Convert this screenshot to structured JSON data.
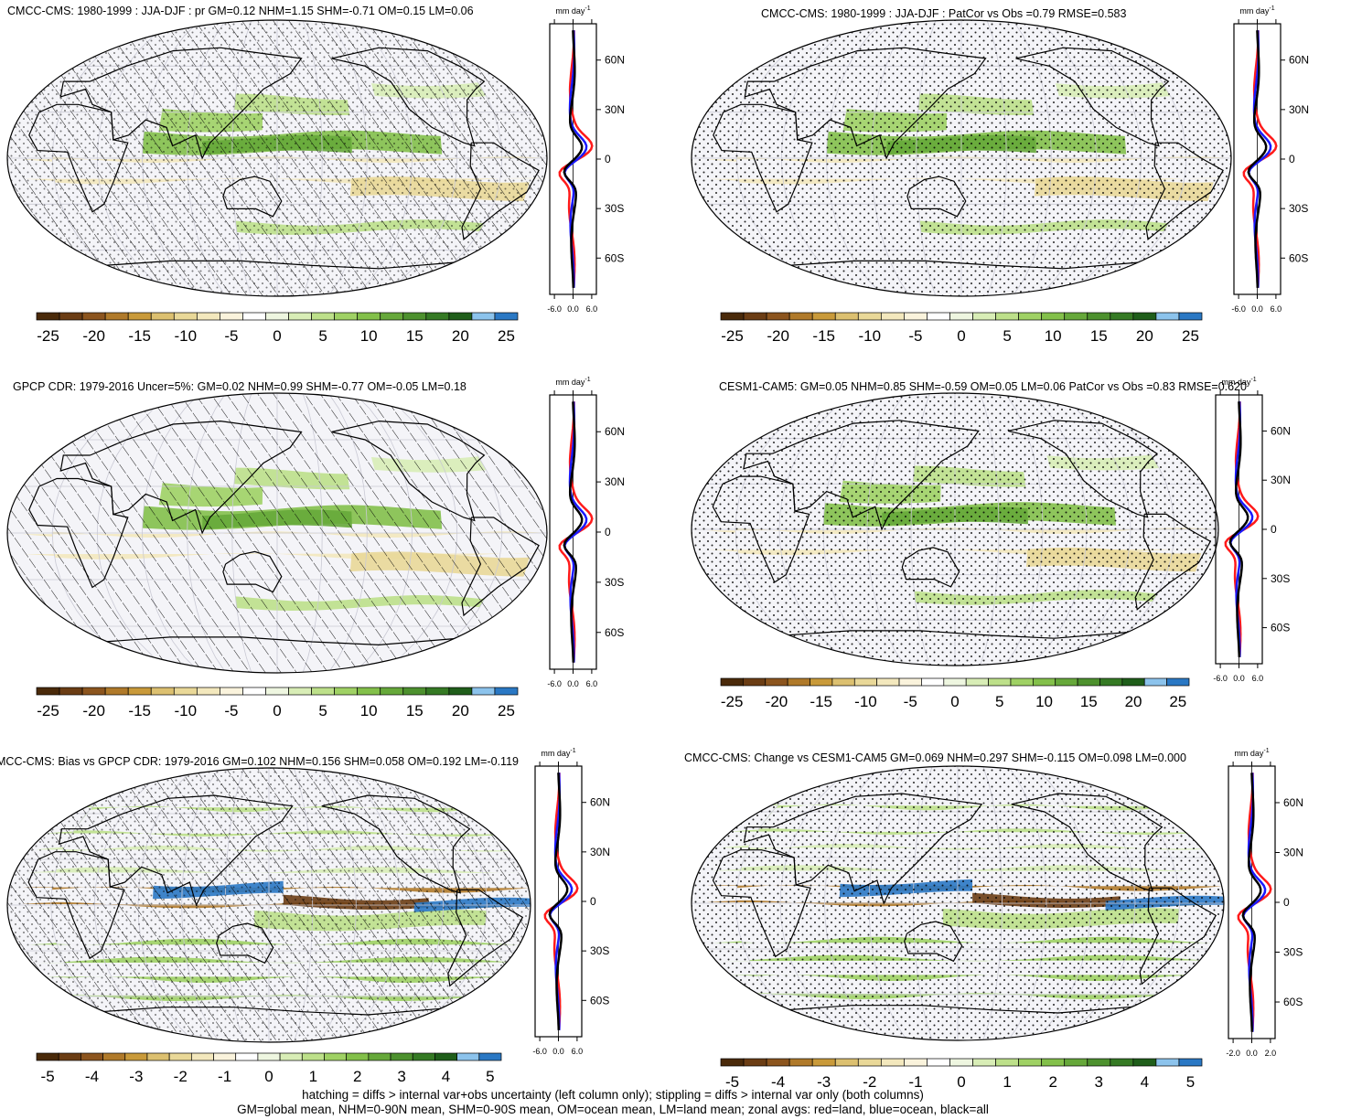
{
  "panels": [
    {
      "id": "tl",
      "title": "CMCC-CMS: 1980-1999 : JJA-DJF : pr GM=0.12 NHM=1.15 SHM=-0.71 OM=0.15 LM=0.06",
      "hatch": true,
      "stipple": true,
      "colorbar": "abs",
      "zonal_xlabels": [
        "-6.0",
        "0.0",
        "6.0"
      ]
    },
    {
      "id": "tr",
      "title": "CMCC-CMS: 1980-1999 : JJA-DJF : PatCor vs Obs =0.79 RMSE=0.583",
      "hatch": false,
      "stipple": true,
      "colorbar": "abs",
      "zonal_xlabels": [
        "-6.0",
        "0.0",
        "6.0"
      ]
    },
    {
      "id": "ml",
      "title": "GPCP CDR: 1979-2016 Uncer=5%: GM=0.02 NHM=0.99 SHM=-0.77 OM=-0.05 LM=0.18",
      "hatch": true,
      "stipple": false,
      "colorbar": "abs",
      "zonal_xlabels": [
        "-6.0",
        "0.0",
        "6.0"
      ]
    },
    {
      "id": "mr",
      "title": "CESM1-CAM5: GM=0.05 NHM=0.85 SHM=-0.59 OM=0.05 LM=0.06 PatCor vs Obs =0.83 RMSE=0.620",
      "hatch": false,
      "stipple": true,
      "colorbar": "abs",
      "zonal_xlabels": [
        "-6.0",
        "0.0",
        "6.0"
      ]
    },
    {
      "id": "bl",
      "title": "MCC-CMS: Bias vs GPCP CDR: 1979-2016 GM=0.102 NHM=0.156 SHM=0.058 OM=0.192 LM=-0.119",
      "hatch": true,
      "stipple": true,
      "colorbar": "diff",
      "zonal_xlabels": [
        "-6.0",
        "0.0",
        "6.0"
      ]
    },
    {
      "id": "br",
      "title": "CMCC-CMS: Change vs CESM1-CAM5 GM=0.069 NHM=0.297 SHM=-0.115 OM=0.098 LM=0.000",
      "hatch": false,
      "stipple": true,
      "colorbar": "diff",
      "zonal_xlabels": [
        "-2.0",
        "0.0",
        "2.0"
      ]
    }
  ],
  "zonal_unit": "mm day",
  "zonal_unit_sup": "-1",
  "lat_labels": [
    "60N",
    "30N",
    "0",
    "30S",
    "60S"
  ],
  "colorbar_abs_labels": [
    "-25",
    "-20",
    "-15",
    "-10",
    "-5",
    "0",
    "5",
    "10",
    "15",
    "20",
    "25"
  ],
  "colorbar_diff_labels": [
    "-5",
    "-4",
    "-3",
    "-2",
    "-1",
    "0",
    "1",
    "2",
    "3",
    "4",
    "5"
  ],
  "colorbar_colors": [
    "#4a2a0a",
    "#6b3d14",
    "#8c551e",
    "#b07a2a",
    "#c99a3a",
    "#dcc070",
    "#e9d898",
    "#f3e8bd",
    "#faf3dc",
    "#ffffff",
    "#eef6e0",
    "#d8edb6",
    "#bde08a",
    "#9fd164",
    "#83c04a",
    "#66a83a",
    "#4d912e",
    "#357a24",
    "#1f5e1a",
    "#8cc3ec",
    "#2a78c4"
  ],
  "zonal_colors": {
    "land": "#ff1a1a",
    "ocean": "#1a1aff",
    "all": "#000000"
  },
  "footer": {
    "line1": "hatching = diffs > internal var+obs uncertainty (left column only); stippling = diffs > internal var only (both columns)",
    "line2": "GM=global mean, NHM=0-90N mean, SHM=0-90S mean, OM=ocean mean, LM=land mean; zonal avgs: red=land, blue=ocean, black=all"
  }
}
